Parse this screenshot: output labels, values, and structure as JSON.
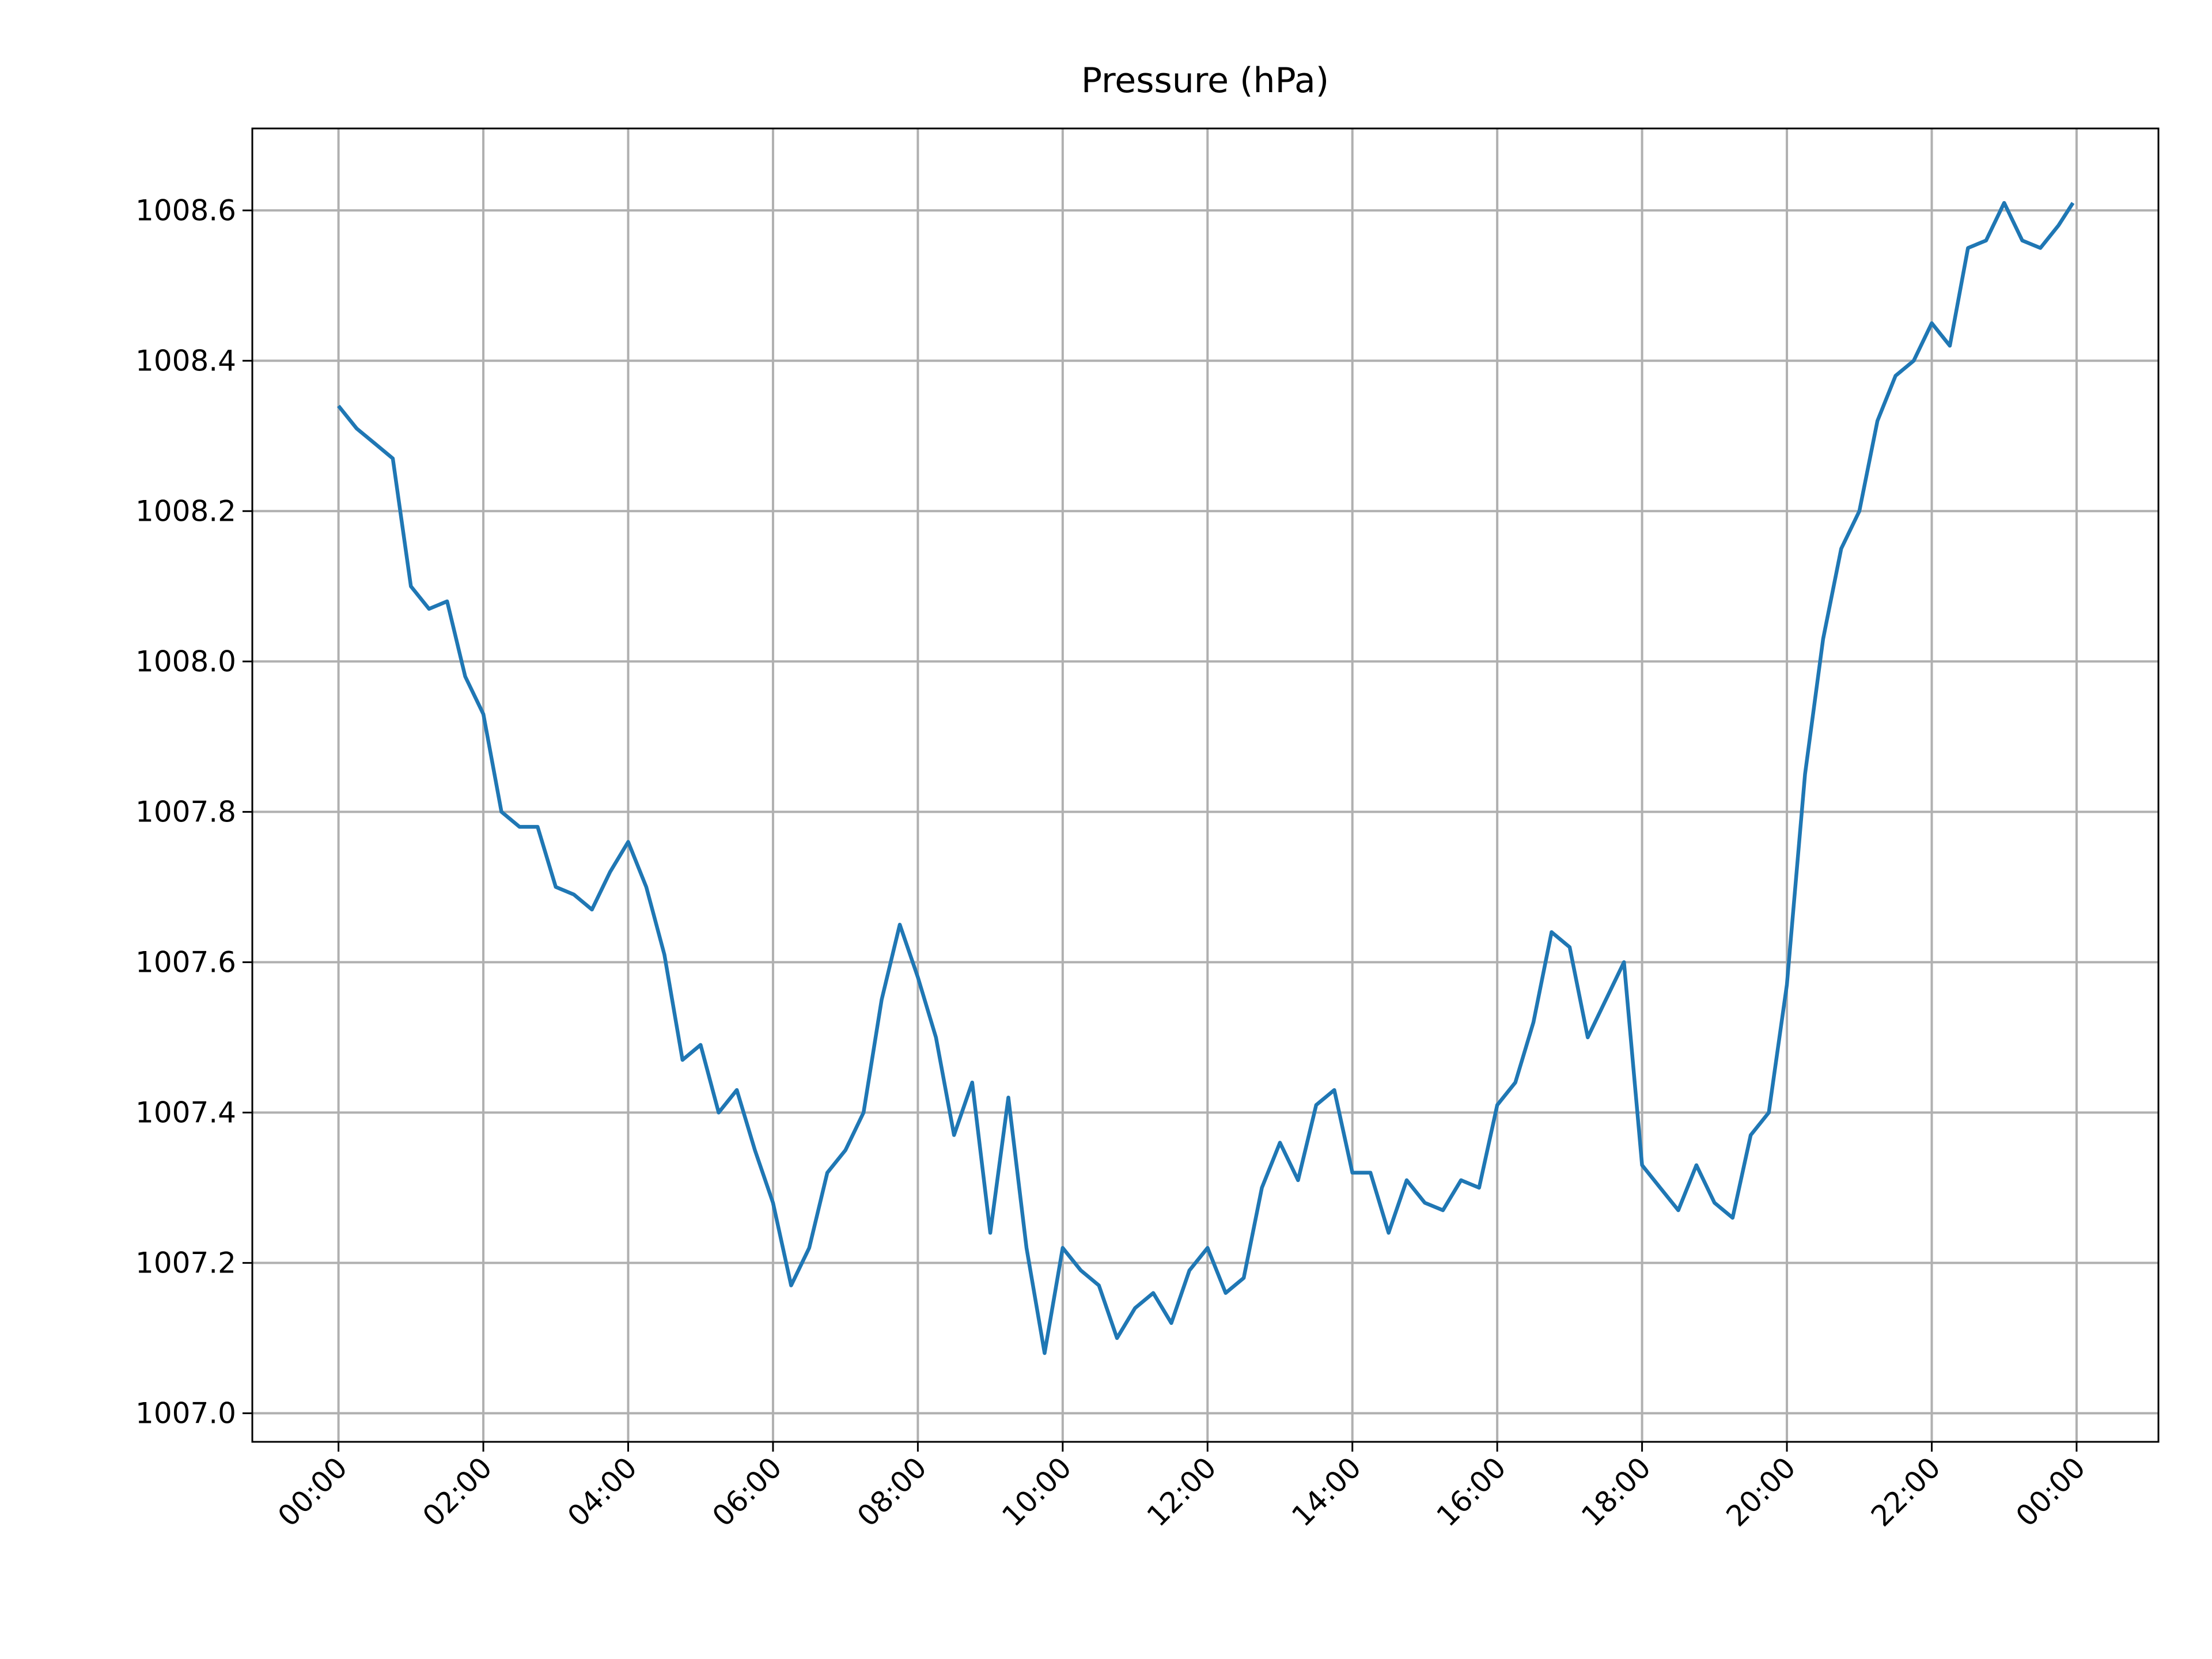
{
  "chart_data": {
    "type": "line",
    "title": "Pressure (hPa)",
    "x": [
      0,
      0.25,
      0.5,
      0.75,
      1,
      1.25,
      1.5,
      1.75,
      2,
      2.25,
      2.5,
      2.75,
      3,
      3.25,
      3.5,
      3.75,
      4,
      4.25,
      4.5,
      4.75,
      5,
      5.25,
      5.5,
      5.75,
      6,
      6.25,
      6.5,
      6.75,
      7,
      7.25,
      7.5,
      7.75,
      8,
      8.25,
      8.5,
      8.75,
      9,
      9.25,
      9.5,
      9.75,
      10,
      10.25,
      10.5,
      10.75,
      11,
      11.25,
      11.5,
      11.75,
      12,
      12.25,
      12.5,
      12.75,
      13,
      13.25,
      13.5,
      13.75,
      14,
      14.25,
      14.5,
      14.75,
      15,
      15.25,
      15.5,
      15.75,
      16,
      16.25,
      16.5,
      16.75,
      17,
      17.25,
      17.5,
      17.75,
      18,
      18.25,
      18.5,
      18.75,
      19,
      19.25,
      19.5,
      19.75,
      20,
      20.25,
      20.5,
      20.75,
      21,
      21.25,
      21.5,
      21.75,
      22,
      22.25,
      22.5,
      22.75,
      23,
      23.25,
      23.5,
      23.75,
      23.95
    ],
    "series": [
      {
        "name": "Pressure",
        "color": "#1f77b4",
        "values": [
          1008.34,
          1008.31,
          1008.29,
          1008.27,
          1008.1,
          1008.07,
          1008.08,
          1007.98,
          1007.93,
          1007.8,
          1007.78,
          1007.78,
          1007.7,
          1007.69,
          1007.67,
          1007.72,
          1007.76,
          1007.7,
          1007.61,
          1007.47,
          1007.49,
          1007.4,
          1007.43,
          1007.35,
          1007.28,
          1007.17,
          1007.22,
          1007.32,
          1007.35,
          1007.4,
          1007.55,
          1007.65,
          1007.58,
          1007.5,
          1007.37,
          1007.44,
          1007.24,
          1007.42,
          1007.22,
          1007.08,
          1007.22,
          1007.19,
          1007.17,
          1007.1,
          1007.14,
          1007.16,
          1007.12,
          1007.19,
          1007.22,
          1007.16,
          1007.18,
          1007.3,
          1007.36,
          1007.31,
          1007.41,
          1007.43,
          1007.32,
          1007.32,
          1007.24,
          1007.31,
          1007.28,
          1007.27,
          1007.31,
          1007.3,
          1007.41,
          1007.44,
          1007.52,
          1007.64,
          1007.62,
          1007.5,
          1007.55,
          1007.6,
          1007.33,
          1007.3,
          1007.27,
          1007.33,
          1007.28,
          1007.26,
          1007.37,
          1007.4,
          1007.57,
          1007.85,
          1008.03,
          1008.15,
          1008.2,
          1008.32,
          1008.38,
          1008.4,
          1008.45,
          1008.42,
          1008.55,
          1008.56,
          1008.61,
          1008.56,
          1008.55,
          1008.58,
          1008.61
        ]
      }
    ],
    "xlim": [
      -1.19,
      25.13
    ],
    "ylim": [
      1006.962,
      1008.709
    ],
    "xticks": [
      {
        "value": 0,
        "label": "00:00"
      },
      {
        "value": 2,
        "label": "02:00"
      },
      {
        "value": 4,
        "label": "04:00"
      },
      {
        "value": 6,
        "label": "06:00"
      },
      {
        "value": 8,
        "label": "08:00"
      },
      {
        "value": 10,
        "label": "10:00"
      },
      {
        "value": 12,
        "label": "12:00"
      },
      {
        "value": 14,
        "label": "14:00"
      },
      {
        "value": 16,
        "label": "16:00"
      },
      {
        "value": 18,
        "label": "18:00"
      },
      {
        "value": 20,
        "label": "20:00"
      },
      {
        "value": 22,
        "label": "22:00"
      },
      {
        "value": 24,
        "label": "00:00"
      }
    ],
    "yticks": [
      {
        "value": 1007.0,
        "label": "1007.0"
      },
      1007.2,
      1007.4,
      1007.6,
      1007.8,
      {
        "value": 1008.0,
        "label": "1008.0"
      },
      1008.2,
      1008.4,
      1008.6
    ],
    "grid": true
  }
}
